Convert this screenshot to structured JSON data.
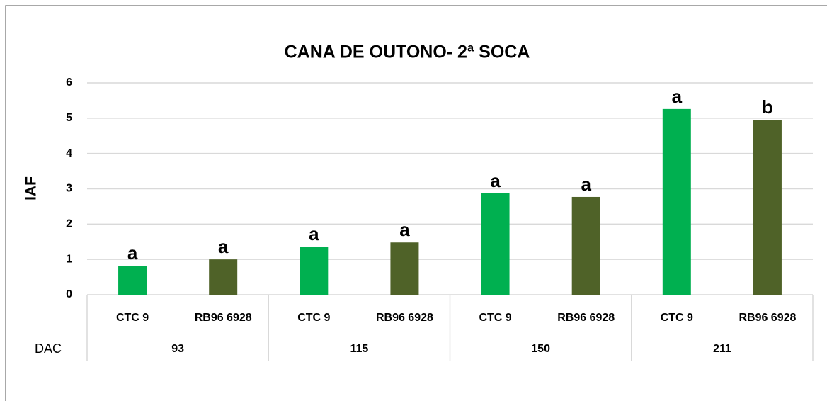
{
  "chart_data": {
    "type": "bar",
    "title": "CANA DE OUTONO- 2ª SOCA",
    "y_label": "IAF",
    "group_label": "DAC",
    "categories": [
      "93",
      "115",
      "150",
      "211"
    ],
    "series": [
      {
        "name": "CTC 9",
        "color": "#00b050",
        "values": [
          0.82,
          1.36,
          2.87,
          5.26
        ],
        "annotations": [
          "a",
          "a",
          "a",
          "a"
        ]
      },
      {
        "name": "RB96 6928",
        "color": "#4f6228",
        "values": [
          1.0,
          1.48,
          2.77,
          4.95
        ],
        "annotations": [
          "a",
          "a",
          "a",
          "b"
        ]
      }
    ],
    "ylim": [
      0,
      6
    ],
    "yticks": [
      0,
      1,
      2,
      3,
      4,
      5,
      6
    ],
    "grid": true
  }
}
